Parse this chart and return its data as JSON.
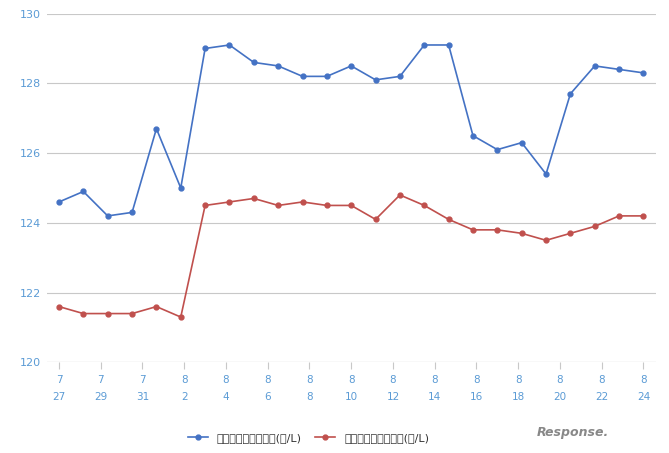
{
  "x_labels_top": [
    "7",
    "7",
    "7",
    "8",
    "8",
    "8",
    "8",
    "8",
    "8",
    "8",
    "8",
    "8",
    "8",
    "8",
    "8"
  ],
  "x_labels_bottom": [
    "27",
    "29",
    "31",
    "2",
    "4",
    "6",
    "8",
    "10",
    "12",
    "14",
    "16",
    "18",
    "20",
    "22",
    "24"
  ],
  "blue_y": [
    124.6,
    124.9,
    124.2,
    124.3,
    126.7,
    125.0,
    129.0,
    129.1,
    128.6,
    128.5,
    128.2,
    128.2,
    128.5,
    128.1,
    128.2,
    129.1,
    129.1,
    126.5,
    126.1,
    126.3,
    125.4,
    127.7,
    128.5,
    128.4,
    128.3
  ],
  "red_y": [
    121.6,
    121.4,
    121.4,
    121.4,
    121.6,
    121.3,
    124.5,
    124.6,
    124.7,
    124.5,
    124.6,
    124.5,
    124.5,
    124.1,
    124.8,
    124.5,
    124.1,
    123.8,
    123.8,
    123.7,
    123.5,
    123.7,
    123.9,
    124.2,
    124.2
  ],
  "ylim": [
    120,
    130
  ],
  "yticks": [
    120,
    122,
    124,
    126,
    128,
    130
  ],
  "blue_color": "#4472c4",
  "red_color": "#c0504d",
  "blue_label": "レギュラー看板価格(円/L)",
  "red_label": "レギュラー実売価格(円/L)",
  "background_color": "#ffffff",
  "grid_color": "#c8c8c8",
  "tick_color": "#5b9bd5",
  "ylabel_color": "#5b9bd5"
}
